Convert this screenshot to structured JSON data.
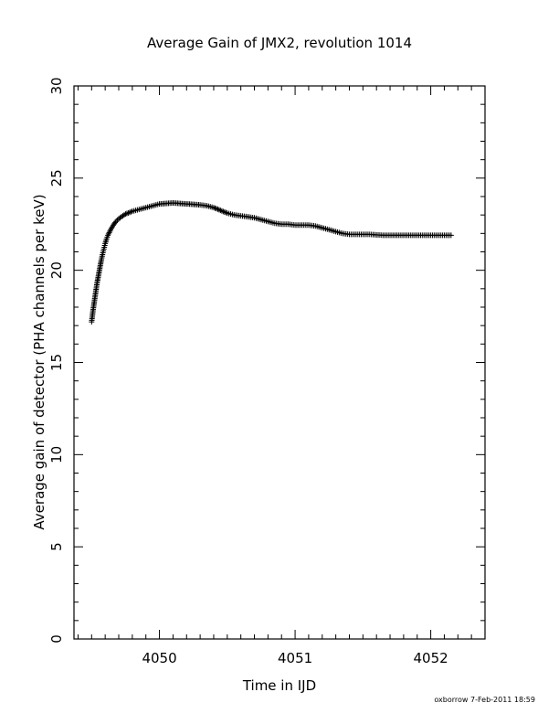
{
  "chart_data": {
    "type": "scatter",
    "title": "Average Gain of JMX2, revolution 1014",
    "xlabel": "Time in IJD",
    "ylabel": "Average gain of detector (PHA channels per keV)",
    "xlim": [
      4049.37,
      4052.4
    ],
    "ylim": [
      0,
      30
    ],
    "xticks": [
      4050,
      4051,
      4052
    ],
    "yticks": [
      0,
      5,
      10,
      15,
      20,
      25,
      30
    ],
    "marker": "plus",
    "grid": false,
    "legend": "none",
    "series": [
      {
        "points": [
          [
            4049.5,
            17.2
          ],
          [
            4049.51,
            17.8
          ],
          [
            4049.52,
            18.3
          ],
          [
            4049.53,
            18.8
          ],
          [
            4049.54,
            19.3
          ],
          [
            4049.55,
            19.7
          ],
          [
            4049.56,
            20.1
          ],
          [
            4049.57,
            20.5
          ],
          [
            4049.58,
            20.85
          ],
          [
            4049.59,
            21.15
          ],
          [
            4049.6,
            21.45
          ],
          [
            4049.61,
            21.7
          ],
          [
            4049.62,
            21.9
          ],
          [
            4049.64,
            22.2
          ],
          [
            4049.66,
            22.45
          ],
          [
            4049.68,
            22.65
          ],
          [
            4049.7,
            22.8
          ],
          [
            4049.72,
            22.9
          ],
          [
            4049.75,
            23.05
          ],
          [
            4049.8,
            23.2
          ],
          [
            4049.85,
            23.3
          ],
          [
            4049.9,
            23.4
          ],
          [
            4049.95,
            23.5
          ],
          [
            4050.0,
            23.6
          ],
          [
            4050.1,
            23.65
          ],
          [
            4050.2,
            23.6
          ],
          [
            4050.3,
            23.55
          ],
          [
            4050.35,
            23.5
          ],
          [
            4050.4,
            23.4
          ],
          [
            4050.45,
            23.25
          ],
          [
            4050.5,
            23.1
          ],
          [
            4050.55,
            23.0
          ],
          [
            4050.6,
            22.95
          ],
          [
            4050.65,
            22.9
          ],
          [
            4050.7,
            22.85
          ],
          [
            4050.75,
            22.75
          ],
          [
            4050.8,
            22.65
          ],
          [
            4050.85,
            22.55
          ],
          [
            4050.9,
            22.5
          ],
          [
            4050.95,
            22.5
          ],
          [
            4051.0,
            22.45
          ],
          [
            4051.05,
            22.45
          ],
          [
            4051.1,
            22.45
          ],
          [
            4051.15,
            22.4
          ],
          [
            4051.2,
            22.3
          ],
          [
            4051.25,
            22.2
          ],
          [
            4051.3,
            22.1
          ],
          [
            4051.35,
            22.0
          ],
          [
            4051.4,
            21.95
          ],
          [
            4051.45,
            21.95
          ],
          [
            4051.5,
            21.95
          ],
          [
            4051.55,
            21.95
          ],
          [
            4051.6,
            21.92
          ],
          [
            4051.65,
            21.9
          ],
          [
            4051.7,
            21.9
          ],
          [
            4051.75,
            21.9
          ],
          [
            4051.8,
            21.9
          ],
          [
            4051.85,
            21.9
          ],
          [
            4051.9,
            21.9
          ],
          [
            4051.95,
            21.9
          ],
          [
            4052.0,
            21.9
          ],
          [
            4052.05,
            21.9
          ],
          [
            4052.1,
            21.9
          ],
          [
            4052.15,
            21.9
          ]
        ]
      }
    ]
  },
  "footer": {
    "credit": "oxborrow  7-Feb-2011 18:59"
  }
}
